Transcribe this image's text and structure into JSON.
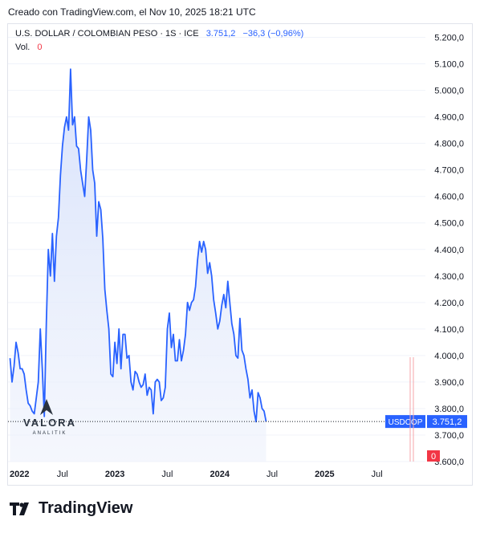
{
  "header": {
    "created_text": "Creado con TradingView.com, el Nov 10, 2025 18:21 UTC"
  },
  "legend": {
    "symbol": "U.S. DOLLAR / COLOMBIAN PESO · 1S · ICE",
    "last_value": "3.751,2",
    "change": "−36,3 (−0,96%)",
    "vol_label": "Vol.",
    "vol_value": "0"
  },
  "watermark": {
    "brand": "VALORA",
    "sub": "ANALITIK"
  },
  "footer": {
    "logo_text": "TradingView",
    "logo_icon": "tradingview-logo-icon"
  },
  "price_tag": {
    "symbol": "USDCOP",
    "value": "3.751,2",
    "vol_value": "0"
  },
  "colors": {
    "line": "#2962ff",
    "fill": "#e3e9fb",
    "axis_text": "#131722",
    "vol_tag": "#f23645"
  },
  "chart_data": {
    "type": "area",
    "title": "U.S. DOLLAR / COLOMBIAN PESO · 1S · ICE",
    "xlabel": "",
    "ylabel": "",
    "ylim": [
      3600,
      5250
    ],
    "y_ticks": [
      "5.200,0",
      "5.100,0",
      "5.000,0",
      "4.900,0",
      "4.800,0",
      "4.700,0",
      "4.600,0",
      "4.500,0",
      "4.400,0",
      "4.300,0",
      "4.200,0",
      "4.100,0",
      "4.000,0",
      "3.900,0",
      "3.800,0",
      "3.700,0",
      "3.600,0"
    ],
    "y_tick_values": [
      5200,
      5100,
      5000,
      4900,
      4800,
      4700,
      4600,
      4500,
      4400,
      4300,
      4200,
      4100,
      4000,
      3900,
      3800,
      3700,
      3600
    ],
    "x_ticks": [
      {
        "label": "2022",
        "t": 0
      },
      {
        "label": "Jul",
        "t": 26
      },
      {
        "label": "2023",
        "t": 52
      },
      {
        "label": "Jul",
        "t": 78
      },
      {
        "label": "2024",
        "t": 104
      },
      {
        "label": "Jul",
        "t": 130
      },
      {
        "label": "2025",
        "t": 156
      },
      {
        "label": "Jul",
        "t": 182
      }
    ],
    "x_unit": "weeks since first week of 2022",
    "x_range": [
      -1,
      206
    ],
    "series": [
      {
        "values": [
          [
            0,
            3990
          ],
          [
            1,
            3900
          ],
          [
            2,
            3960
          ],
          [
            3,
            4050
          ],
          [
            4,
            4010
          ],
          [
            5,
            3950
          ],
          [
            6,
            3950
          ],
          [
            7,
            3930
          ],
          [
            8,
            3870
          ],
          [
            9,
            3820
          ],
          [
            10,
            3810
          ],
          [
            11,
            3790
          ],
          [
            12,
            3780
          ],
          [
            13,
            3840
          ],
          [
            14,
            3900
          ],
          [
            15,
            4100
          ],
          [
            16,
            3950
          ],
          [
            17,
            3770
          ],
          [
            18,
            4120
          ],
          [
            19,
            4400
          ],
          [
            20,
            4300
          ],
          [
            21,
            4460
          ],
          [
            22,
            4280
          ],
          [
            23,
            4450
          ],
          [
            24,
            4520
          ],
          [
            25,
            4680
          ],
          [
            26,
            4790
          ],
          [
            27,
            4860
          ],
          [
            28,
            4900
          ],
          [
            29,
            4850
          ],
          [
            30,
            5080
          ],
          [
            31,
            4870
          ],
          [
            32,
            4900
          ],
          [
            33,
            4790
          ],
          [
            34,
            4780
          ],
          [
            35,
            4700
          ],
          [
            36,
            4650
          ],
          [
            37,
            4600
          ],
          [
            38,
            4740
          ],
          [
            39,
            4900
          ],
          [
            40,
            4850
          ],
          [
            41,
            4700
          ],
          [
            42,
            4650
          ],
          [
            43,
            4450
          ],
          [
            44,
            4580
          ],
          [
            45,
            4550
          ],
          [
            46,
            4440
          ],
          [
            47,
            4250
          ],
          [
            48,
            4170
          ],
          [
            49,
            4100
          ],
          [
            50,
            3930
          ],
          [
            51,
            3920
          ],
          [
            52,
            4050
          ],
          [
            53,
            3970
          ],
          [
            54,
            4100
          ],
          [
            55,
            3950
          ],
          [
            56,
            4080
          ],
          [
            57,
            4080
          ],
          [
            58,
            3990
          ],
          [
            59,
            4000
          ],
          [
            60,
            3900
          ],
          [
            61,
            3870
          ],
          [
            62,
            3940
          ],
          [
            63,
            3930
          ],
          [
            64,
            3900
          ],
          [
            65,
            3880
          ],
          [
            66,
            3890
          ],
          [
            67,
            3930
          ],
          [
            68,
            3850
          ],
          [
            69,
            3880
          ],
          [
            70,
            3870
          ],
          [
            71,
            3780
          ],
          [
            72,
            3900
          ],
          [
            73,
            3910
          ],
          [
            74,
            3900
          ],
          [
            75,
            3830
          ],
          [
            76,
            3840
          ],
          [
            77,
            3880
          ],
          [
            78,
            4100
          ],
          [
            79,
            4160
          ],
          [
            80,
            4030
          ],
          [
            81,
            4080
          ],
          [
            82,
            3980
          ],
          [
            83,
            3980
          ],
          [
            84,
            4060
          ],
          [
            85,
            3980
          ],
          [
            86,
            4020
          ],
          [
            87,
            4080
          ],
          [
            88,
            4200
          ],
          [
            89,
            4170
          ],
          [
            90,
            4200
          ],
          [
            91,
            4210
          ],
          [
            92,
            4260
          ],
          [
            93,
            4360
          ],
          [
            94,
            4430
          ],
          [
            95,
            4390
          ],
          [
            96,
            4430
          ],
          [
            97,
            4400
          ],
          [
            98,
            4310
          ],
          [
            99,
            4350
          ],
          [
            100,
            4300
          ],
          [
            101,
            4210
          ],
          [
            102,
            4160
          ],
          [
            103,
            4100
          ],
          [
            104,
            4130
          ],
          [
            105,
            4190
          ],
          [
            106,
            4230
          ],
          [
            107,
            4180
          ],
          [
            108,
            4280
          ],
          [
            109,
            4200
          ],
          [
            110,
            4120
          ],
          [
            111,
            4080
          ],
          [
            112,
            4000
          ],
          [
            113,
            3990
          ],
          [
            114,
            4140
          ],
          [
            115,
            4020
          ],
          [
            116,
            4000
          ],
          [
            117,
            3950
          ],
          [
            118,
            3910
          ],
          [
            119,
            3840
          ],
          [
            120,
            3870
          ],
          [
            121,
            3790
          ],
          [
            122,
            3750
          ],
          [
            123,
            3860
          ],
          [
            124,
            3840
          ],
          [
            125,
            3800
          ],
          [
            126,
            3790
          ],
          [
            127,
            3751
          ]
        ]
      }
    ]
  }
}
